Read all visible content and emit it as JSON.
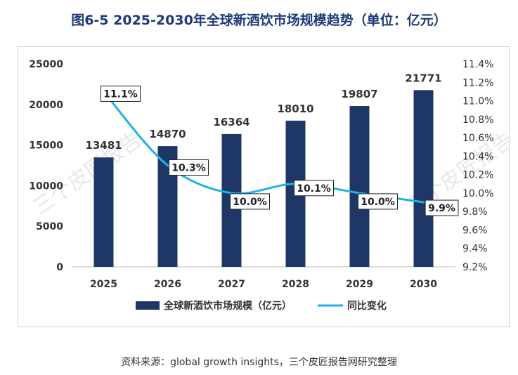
{
  "title": "图6-5 2025-2030年全球新酒饮市场规模趋势（单位：亿元）",
  "source": "资料来源：global growth insights，三个皮匠报告网研究整理",
  "watermark": "三个皮匠报告",
  "colors": {
    "bar": "#1f3766",
    "line": "#1fb3e8",
    "title": "#1f3a7a"
  },
  "chart_data": {
    "type": "bar",
    "categories": [
      "2025",
      "2026",
      "2027",
      "2028",
      "2029",
      "2030"
    ],
    "series": [
      {
        "name": "全球新酒饮市场规模（亿元）",
        "type": "bar",
        "axis": "left",
        "values": [
          13481,
          14870,
          16364,
          18010,
          19807,
          21771
        ],
        "labels": [
          "13481",
          "14870",
          "16364",
          "18010",
          "19807",
          "21771"
        ]
      },
      {
        "name": "同比变化",
        "type": "line",
        "axis": "right",
        "values": [
          11.1,
          10.3,
          10.0,
          10.1,
          10.0,
          9.9
        ],
        "labels": [
          "11.1%",
          "10.3%",
          "10.0%",
          "10.1%",
          "10.0%",
          "9.9%"
        ]
      }
    ],
    "y_left": {
      "min": 0,
      "max": 25000,
      "ticks": [
        "0",
        "5000",
        "10000",
        "15000",
        "20000",
        "25000"
      ]
    },
    "y_right": {
      "min": 9.2,
      "max": 11.4,
      "ticks": [
        "9.2%",
        "9.4%",
        "9.6%",
        "9.8%",
        "10.0%",
        "10.2%",
        "10.4%",
        "10.6%",
        "10.8%",
        "11.0%",
        "11.2%",
        "11.4%"
      ]
    },
    "legend_position": "bottom",
    "grid": false
  }
}
